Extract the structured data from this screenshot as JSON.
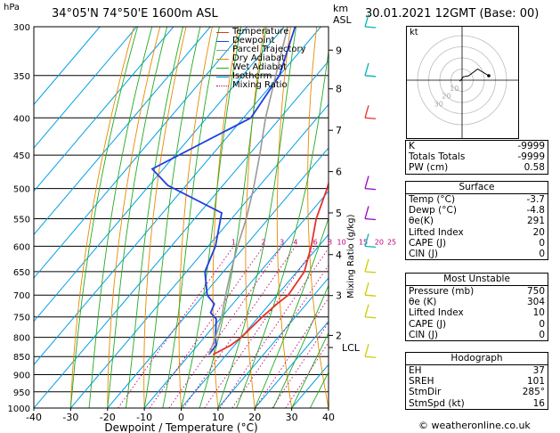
{
  "header": {
    "p_unit": "hPa",
    "location": "34°05'N  74°50'E  1600m  ASL",
    "km_unit": "km",
    "asl": "ASL",
    "datetime": "30.01.2021  12GMT  (Base: 00)"
  },
  "chart_data": {
    "type": "line",
    "subtype": "skew-T log-P diagram",
    "xlabel": "Dewpoint / Temperature (°C)",
    "ylabel": "Mixing Ratio (g/kg)",
    "x_ticks": [
      "-40",
      "-30",
      "-20",
      "-10",
      "0",
      "10",
      "20",
      "30",
      "40"
    ],
    "xlim": [
      -40,
      40
    ],
    "pressure_levels": [
      "300",
      "350",
      "400",
      "450",
      "500",
      "550",
      "600",
      "650",
      "700",
      "750",
      "800",
      "850",
      "900",
      "950",
      "1000"
    ],
    "ylim": [
      1000,
      300
    ],
    "km_ticks": [
      {
        "label": "9",
        "p": 323
      },
      {
        "label": "8",
        "p": 365
      },
      {
        "label": "7",
        "p": 416
      },
      {
        "label": "6",
        "p": 474
      },
      {
        "label": "5",
        "p": 540
      },
      {
        "label": "4",
        "p": 616
      },
      {
        "label": "3",
        "p": 701
      },
      {
        "label": "2",
        "p": 795
      },
      {
        "label": "LCL",
        "p": 826
      }
    ],
    "mixing_ratio_labels": [
      "1",
      "2",
      "3",
      "4",
      "6",
      "8",
      "10",
      "15",
      "20",
      "25"
    ],
    "mixing_ratio_values": [
      1,
      2,
      3,
      4,
      6,
      8,
      10,
      15,
      20,
      25
    ],
    "legend": [
      {
        "name": "Temperature",
        "color": "#e8302a"
      },
      {
        "name": "Dewpoint",
        "color": "#1f3fe0"
      },
      {
        "name": "Parcel Trajectory",
        "color": "#999999"
      },
      {
        "name": "Dry Adiabat",
        "color": "#e88a00"
      },
      {
        "name": "Wet Adiabat",
        "color": "#22aa22"
      },
      {
        "name": "Isotherm",
        "color": "#00a0e6"
      },
      {
        "name": "Mixing Ratio",
        "color": "#c0007a"
      }
    ],
    "legend_position": "top-left",
    "series": [
      {
        "name": "Temperature",
        "color": "#e8302a",
        "points": [
          [
            845,
            -3.7
          ],
          [
            820,
            -1
          ],
          [
            800,
            0
          ],
          [
            750,
            1
          ],
          [
            720,
            2
          ],
          [
            700,
            3
          ],
          [
            650,
            2
          ],
          [
            600,
            -2
          ],
          [
            550,
            -7
          ],
          [
            500,
            -11
          ],
          [
            450,
            -16
          ],
          [
            400,
            -23
          ],
          [
            350,
            -31
          ],
          [
            300,
            -39
          ]
        ]
      },
      {
        "name": "Dewpoint",
        "color": "#1f3fe0",
        "points": [
          [
            845,
            -4.8
          ],
          [
            820,
            -5
          ],
          [
            800,
            -7
          ],
          [
            755,
            -11
          ],
          [
            740,
            -14
          ],
          [
            720,
            -15
          ],
          [
            700,
            -19
          ],
          [
            650,
            -25
          ],
          [
            600,
            -28
          ],
          [
            540,
            -34
          ],
          [
            495,
            -55
          ],
          [
            470,
            -63
          ],
          [
            400,
            -48
          ],
          [
            350,
            -50
          ],
          [
            300,
            -57
          ]
        ]
      },
      {
        "name": "Parcel Trajectory",
        "color": "#999999",
        "points": [
          [
            845,
            -4.8
          ],
          [
            800,
            -7
          ],
          [
            750,
            -10
          ],
          [
            700,
            -14
          ],
          [
            650,
            -18
          ],
          [
            600,
            -22
          ],
          [
            550,
            -26
          ],
          [
            500,
            -31
          ],
          [
            450,
            -37
          ],
          [
            400,
            -44
          ],
          [
            350,
            -51
          ],
          [
            300,
            -59
          ]
        ]
      }
    ]
  },
  "hodograph": {
    "unit": "kt",
    "ring_labels": [
      "10",
      "20",
      "30"
    ],
    "trace": [
      [
        -2,
        -1
      ],
      [
        1,
        3
      ],
      [
        6,
        4
      ],
      [
        14,
        10
      ],
      [
        24,
        4
      ]
    ]
  },
  "wind_barbs": {
    "colors": [
      "#00b4b4",
      "#cccc00",
      "#e8302a",
      "#9900cc"
    ],
    "levels": [
      300,
      350,
      400,
      500,
      550,
      600,
      650,
      700,
      750,
      850
    ]
  },
  "indices": {
    "rows": [
      {
        "label": "K",
        "value": "-9999"
      },
      {
        "label": "Totals Totals",
        "value": "-9999"
      },
      {
        "label": "PW (cm)",
        "value": "0.58"
      }
    ]
  },
  "surface": {
    "title": "Surface",
    "rows": [
      {
        "label": "Temp (°C)",
        "value": "-3.7"
      },
      {
        "label": "Dewp (°C)",
        "value": "-4.8"
      },
      {
        "label": "θe(K)",
        "value": "291"
      },
      {
        "label": "Lifted Index",
        "value": "20"
      },
      {
        "label": "CAPE (J)",
        "value": "0"
      },
      {
        "label": "CIN (J)",
        "value": "0"
      }
    ]
  },
  "unstable": {
    "title": "Most Unstable",
    "rows": [
      {
        "label": "Pressure (mb)",
        "value": "750"
      },
      {
        "label": "θe (K)",
        "value": "304"
      },
      {
        "label": "Lifted Index",
        "value": "10"
      },
      {
        "label": "CAPE (J)",
        "value": "0"
      },
      {
        "label": "CIN (J)",
        "value": "0"
      }
    ]
  },
  "hodo_table": {
    "title": "Hodograph",
    "rows": [
      {
        "label": "EH",
        "value": "37"
      },
      {
        "label": "SREH",
        "value": "101"
      },
      {
        "label": "StmDir",
        "value": "285°"
      },
      {
        "label": "StmSpd (kt)",
        "value": "16"
      }
    ]
  },
  "footer": {
    "credit": "© weatheronline.co.uk"
  }
}
